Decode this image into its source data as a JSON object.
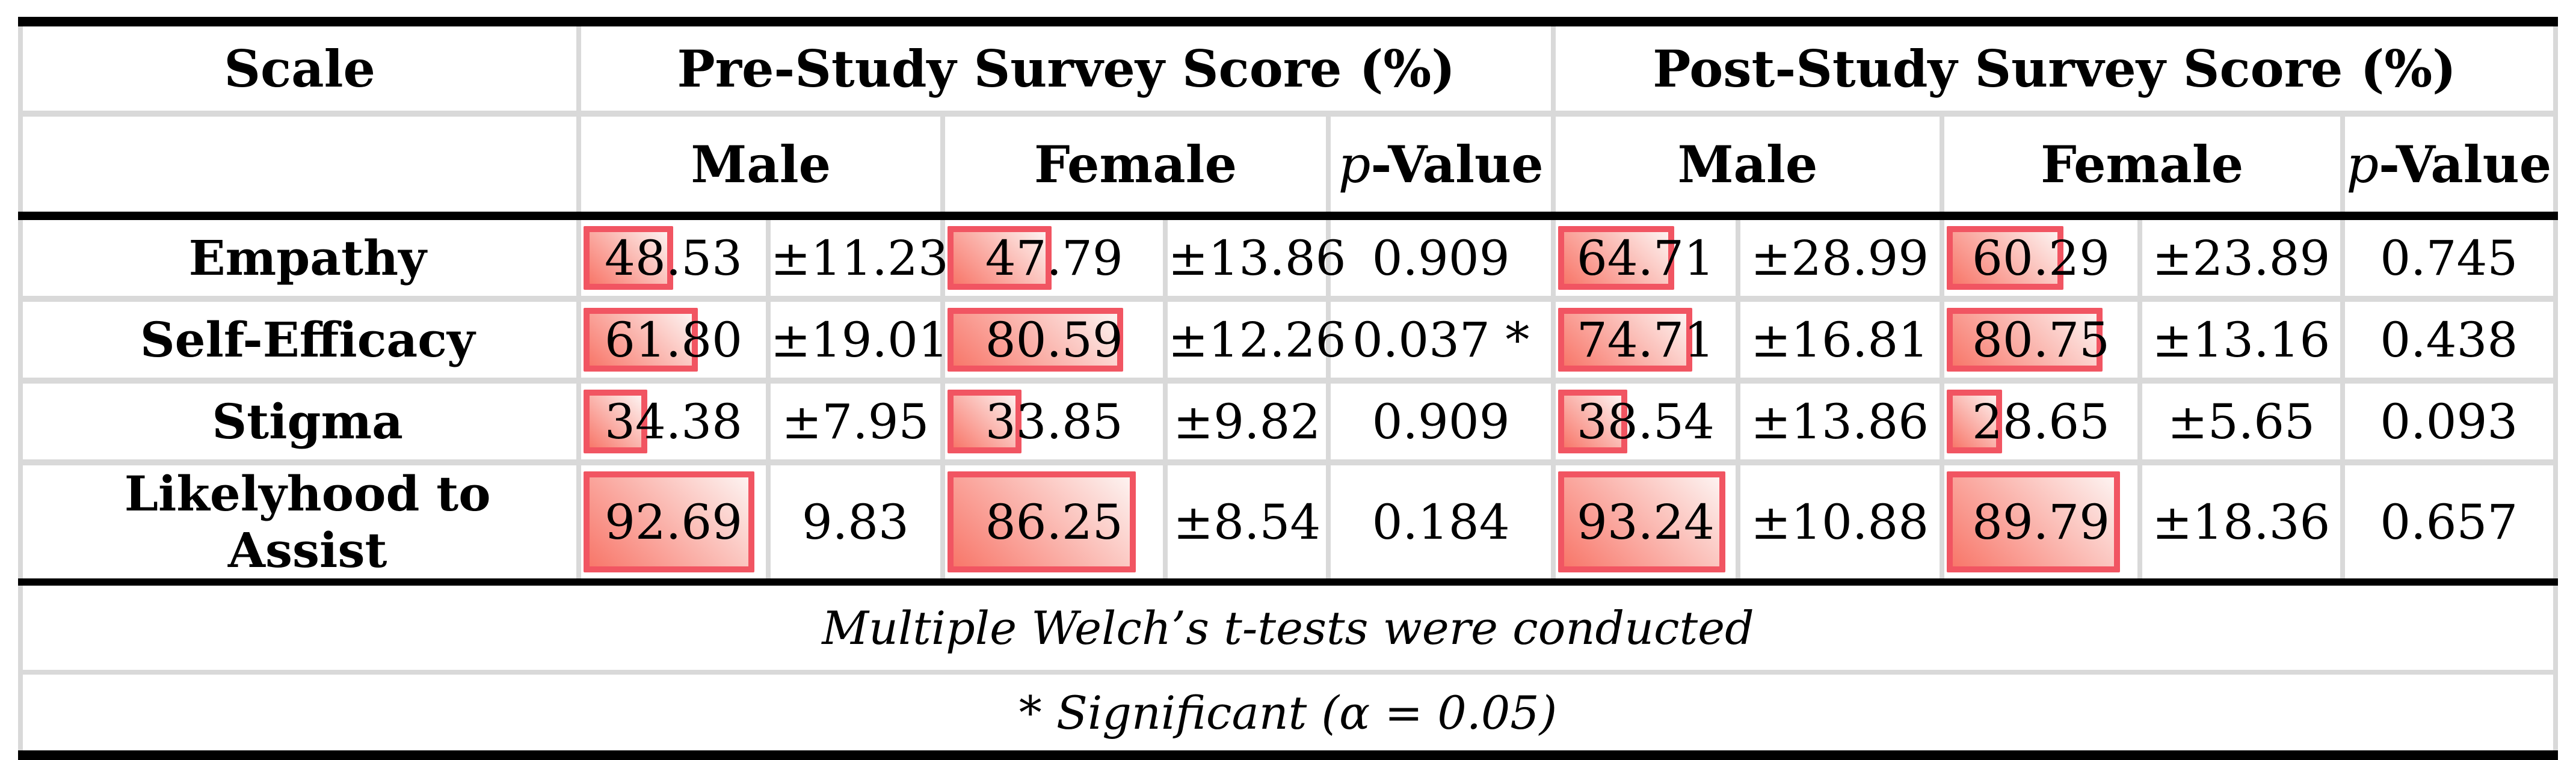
{
  "header": {
    "scale": "Scale",
    "pre_group": "Pre-Study Survey Score (%)",
    "post_group": "Post-Study Survey Score (%)",
    "male": "Male",
    "female": "Female",
    "p_italic": "p",
    "p_rest": "-Value"
  },
  "rows": [
    {
      "label": "Empathy",
      "pre": {
        "male_mean": "48.53",
        "male_mean_value": 48.53,
        "male_sd": "±11.23",
        "female_mean": "47.79",
        "female_mean_value": 47.79,
        "female_sd": "±13.86",
        "p_value": "0.909"
      },
      "post": {
        "male_mean": "64.71",
        "male_mean_value": 64.71,
        "male_sd": "±28.99",
        "female_mean": "60.29",
        "female_mean_value": 60.29,
        "female_sd": "±23.89",
        "p_value": "0.745"
      }
    },
    {
      "label": "Self-Efficacy",
      "pre": {
        "male_mean": "61.80",
        "male_mean_value": 61.8,
        "male_sd": "±19.01",
        "female_mean": "80.59",
        "female_mean_value": 80.59,
        "female_sd": "±12.26",
        "p_value": "0.037 *"
      },
      "post": {
        "male_mean": "74.71",
        "male_mean_value": 74.71,
        "male_sd": "±16.81",
        "female_mean": "80.75",
        "female_mean_value": 80.75,
        "female_sd": "±13.16",
        "p_value": "0.438"
      }
    },
    {
      "label": "Stigma",
      "pre": {
        "male_mean": "34.38",
        "male_mean_value": 34.38,
        "male_sd": "±7.95",
        "female_mean": "33.85",
        "female_mean_value": 33.85,
        "female_sd": "±9.82",
        "p_value": "0.909"
      },
      "post": {
        "male_mean": "38.54",
        "male_mean_value": 38.54,
        "male_sd": "±13.86",
        "female_mean": "28.65",
        "female_mean_value": 28.65,
        "female_sd": "±5.65",
        "p_value": "0.093"
      }
    },
    {
      "label": "Likelyhood to Assist",
      "pre": {
        "male_mean": "92.69",
        "male_mean_value": 92.69,
        "male_sd": "9.83",
        "female_mean": "86.25",
        "female_mean_value": 86.25,
        "female_sd": "±8.54",
        "p_value": "0.184"
      },
      "post": {
        "male_mean": "93.24",
        "male_mean_value": 93.24,
        "male_sd": "±10.88",
        "female_mean": "89.79",
        "female_mean_value": 89.79,
        "female_sd": "±18.36",
        "p_value": "0.657"
      }
    }
  ],
  "footnotes": [
    "Multiple Welch’s t-tests were conducted",
    "* Significant (α = 0.05)"
  ],
  "colors": {
    "bar_border": "#f15562",
    "bar_fill_start": "#f8776a",
    "bar_fill_end": "#fdf3f1",
    "grid_line": "#d9d9d9",
    "frame_line": "#000000"
  },
  "chart_data": {
    "type": "table",
    "title": "Pre- and Post-Study Survey Scores by Gender",
    "columns": [
      "Scale",
      "Pre Male Mean",
      "Pre Male SD",
      "Pre Female Mean",
      "Pre Female SD",
      "Pre p-Value",
      "Post Male Mean",
      "Post Male SD",
      "Post Female Mean",
      "Post Female SD",
      "Post p-Value"
    ],
    "rows": [
      [
        "Empathy",
        48.53,
        11.23,
        47.79,
        13.86,
        0.909,
        64.71,
        28.99,
        60.29,
        23.89,
        0.745
      ],
      [
        "Self-Efficacy",
        61.8,
        19.01,
        80.59,
        12.26,
        0.037,
        74.71,
        16.81,
        80.75,
        13.16,
        0.438
      ],
      [
        "Stigma",
        34.38,
        7.95,
        33.85,
        9.82,
        0.909,
        38.54,
        13.86,
        28.65,
        5.65,
        0.093
      ],
      [
        "Likelyhood to Assist",
        92.69,
        9.83,
        86.25,
        8.54,
        0.184,
        93.24,
        10.88,
        89.79,
        18.36,
        0.657
      ]
    ],
    "bar_scale": [
      0,
      100
    ],
    "notes": [
      "Multiple Welch’s t-tests were conducted",
      "* Significant (α = 0.05)"
    ]
  }
}
